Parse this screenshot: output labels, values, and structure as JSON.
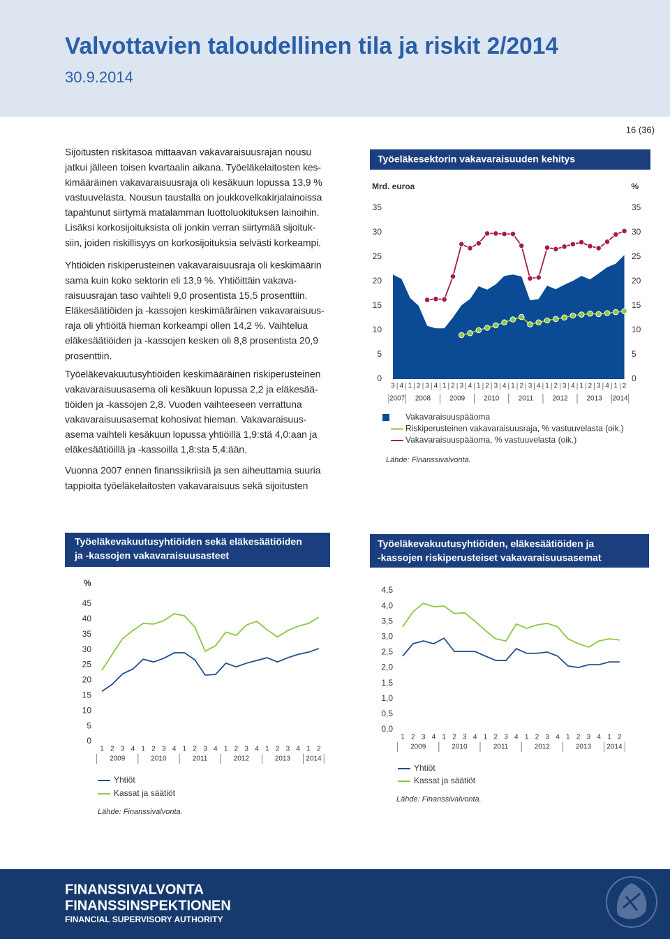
{
  "header": {
    "title": "Valvottavien taloudellinen tila ja riskit 2/2014",
    "date": "30.9.2014"
  },
  "page_number": "16 (36)",
  "paragraphs": [
    [
      "Sijoitusten riskitasoa mittaavan vakavaraisuusrajan nousu",
      "jatkui jälleen toisen kvartaalin aikana. Työeläkelaitosten kes-",
      "kimääräinen vakavaraisuusraja oli kesäkuun lopussa 13,9 %",
      "vastuuvelasta. Nousun taustalla on joukkovelkakirjalainoissa",
      "tapahtunut siirtymä matalamman luottoluokituksen lainoihin.",
      "Lisäksi korkosijoituksista oli jonkin verran siirtymää sijoituk-",
      "siin, joiden riskillisyys on korkosijoituksia selvästi korkeampi."
    ],
    [
      "Yhtiöiden riskiperusteinen vakavaraisuusraja oli keskimäärin",
      "sama kuin koko sektorin eli 13,9 %. Yhtiöittäin vakava-",
      "raisuusrajan taso vaihteli 9,0 prosentista 15,5 prosenttiin.",
      "Eläkesäätiöiden ja -kassojen keskimääräinen vakavaraisuus-",
      "raja oli yhtiöitä hieman korkeampi ollen 14,2 %. Vaihtelua",
      "eläkesäätiöiden ja -kassojen kesken oli 8,8 prosentista 20,9",
      "prosenttiin."
    ],
    [
      "Työeläkevakuutusyhtiöiden keskimääräinen riskiperusteinen",
      "vakavaraisuusasema oli kesäkuun lopussa 2,2 ja eläkesää-",
      "tiöiden ja -kassojen 2,8. Vuoden vaihteeseen verrattuna",
      "vakavaraisuusasemat kohosivat hieman. Vakavaraisuus-",
      "asema vaihteli kesäkuun lopussa yhtiöillä 1,9:stä 4,0:aan ja",
      "eläkesäätiöillä ja -kassoilla 1,8:sta 5,4:ään."
    ],
    [
      "Vuonna 2007 ennen finanssikriisiä ja sen aiheuttamia suuria",
      "tappioita työeläkelaitosten vakavaraisuus sekä sijoitusten"
    ]
  ],
  "chart_data": [
    {
      "type": "line",
      "title": [
        "Työeläkesektorin vakavaraisuuden kehitys"
      ],
      "y_label": "Mrd. euroa",
      "y2_label": "%",
      "categories": [
        "3",
        "4",
        "1",
        "2",
        "3",
        "4",
        "1",
        "2",
        "3",
        "4",
        "1",
        "2",
        "3",
        "4",
        "1",
        "2",
        "3",
        "4",
        "1",
        "2",
        "3",
        "4",
        "1",
        "2",
        "3",
        "4",
        "1",
        "2"
      ],
      "year_labels": [
        "2007",
        "2008",
        "2009",
        "2010",
        "2011",
        "2012",
        "2013",
        "2014"
      ],
      "ylim": [
        0,
        35
      ],
      "yticks": [
        0,
        5,
        10,
        15,
        20,
        25,
        30,
        35
      ],
      "y2lim": [
        0,
        35
      ],
      "y2ticks": [
        0,
        5,
        10,
        15,
        20,
        25,
        30,
        35
      ],
      "series": [
        {
          "name": "Vakavaraisuuspääoma",
          "type": "area",
          "color": "#0b4a94",
          "values": [
            21.4,
            20.5,
            16.6,
            15.0,
            10.9,
            10.4,
            10.4,
            12.6,
            15.1,
            16.4,
            19.0,
            18.3,
            19.4,
            21.1,
            21.4,
            21.0,
            16.1,
            16.4,
            19.1,
            18.4,
            19.3,
            20.1,
            21.1,
            20.4,
            21.6,
            22.9,
            23.6,
            25.4
          ]
        },
        {
          "name": "Riskiperusteinen vakavaraisuusraja, % vastuuvelasta (oik.)",
          "type": "line",
          "axis": "y2",
          "markers": true,
          "color": "#8cc63f",
          "values": [
            null,
            null,
            null,
            null,
            null,
            null,
            null,
            null,
            9.0,
            9.4,
            10.0,
            10.5,
            11.0,
            11.6,
            12.2,
            12.7,
            11.2,
            11.6,
            12.0,
            12.3,
            12.6,
            13.0,
            13.2,
            13.4,
            13.3,
            13.5,
            13.7,
            13.9
          ]
        },
        {
          "name": "Vakavaraisuuspääoma, % vastuuvelasta (oik.)",
          "type": "line",
          "axis": "y2",
          "markers": true,
          "color": "#a8194f",
          "values": [
            null,
            null,
            null,
            null,
            16.2,
            16.4,
            16.3,
            21.0,
            27.6,
            26.8,
            27.8,
            29.8,
            29.8,
            29.7,
            29.7,
            27.3,
            20.6,
            20.8,
            26.9,
            26.6,
            27.1,
            27.6,
            28.0,
            27.2,
            26.8,
            28.1,
            29.6,
            30.3
          ]
        }
      ],
      "source": "Lähde: Finanssivalvonta."
    },
    {
      "type": "line",
      "title": [
        "Työeläkevakuutusyhtiöiden sekä eläkesäätiöiden",
        "ja -kassojen vakavaraisuusasteet"
      ],
      "y_label": "%",
      "categories": [
        "1",
        "2",
        "3",
        "4",
        "1",
        "2",
        "3",
        "4",
        "1",
        "2",
        "3",
        "4",
        "1",
        "2",
        "3",
        "4",
        "1",
        "2",
        "3",
        "4",
        "1",
        "2"
      ],
      "year_labels": [
        "2009",
        "2010",
        "2011",
        "2012",
        "2013",
        "2014"
      ],
      "ylim": [
        0,
        45
      ],
      "yticks": [
        0,
        5,
        10,
        15,
        20,
        25,
        30,
        35,
        40,
        45
      ],
      "series": [
        {
          "name": "Yhtiöt",
          "color": "#1f4e8c",
          "values": [
            16.4,
            18.7,
            22.1,
            23.7,
            26.9,
            26.0,
            27.2,
            29.0,
            29.0,
            26.7,
            21.7,
            21.9,
            25.6,
            24.4,
            25.6,
            26.5,
            27.4,
            26.0,
            27.4,
            28.5,
            29.2,
            30.4
          ]
        },
        {
          "name": "Kassat ja säätiöt",
          "color": "#8cc63f",
          "values": [
            23.3,
            28.5,
            33.6,
            36.3,
            38.6,
            38.4,
            39.5,
            41.8,
            41.1,
            37.4,
            29.5,
            31.3,
            35.8,
            34.7,
            38.1,
            39.3,
            36.5,
            34.2,
            36.3,
            37.7,
            38.6,
            40.6
          ]
        }
      ],
      "source": "Lähde: Finanssivalvonta."
    },
    {
      "type": "line",
      "title": [
        "Työeläkevakuutusyhtiöiden, eläkesäätiöiden ja",
        "-kassojen riskiperusteiset vakavaraisuusasemat"
      ],
      "categories": [
        "1",
        "2",
        "3",
        "4",
        "1",
        "2",
        "3",
        "4",
        "1",
        "2",
        "3",
        "4",
        "1",
        "2",
        "3",
        "4",
        "1",
        "2",
        "3",
        "4",
        "1",
        "2"
      ],
      "year_labels": [
        "2009",
        "2010",
        "2011",
        "2012",
        "2013",
        "2014"
      ],
      "ylim": [
        0,
        4.5
      ],
      "yticks": [
        {
          "value": 0,
          "label": "0,0"
        },
        {
          "value": 0.5,
          "label": "0,5"
        },
        {
          "value": 1,
          "label": "1,0"
        },
        {
          "value": 1.5,
          "label": "1,5"
        },
        {
          "value": 2,
          "label": "2,0"
        },
        {
          "value": 2.5,
          "label": "2,5"
        },
        {
          "value": 3,
          "label": "3,0"
        },
        {
          "value": 3.5,
          "label": "3,5"
        },
        {
          "value": 4,
          "label": "4,0"
        },
        {
          "value": 4.5,
          "label": "4,5"
        }
      ],
      "series": [
        {
          "name": "Yhtiöt",
          "color": "#1f4e8c",
          "values": [
            2.38,
            2.78,
            2.87,
            2.78,
            2.96,
            2.53,
            2.53,
            2.53,
            2.38,
            2.24,
            2.24,
            2.62,
            2.47,
            2.47,
            2.51,
            2.38,
            2.06,
            2.01,
            2.1,
            2.1,
            2.19,
            2.19
          ]
        },
        {
          "name": "Kassat ja säätiöt",
          "color": "#8cc63f",
          "values": [
            3.33,
            3.82,
            4.09,
            3.98,
            4.0,
            3.76,
            3.78,
            3.51,
            3.21,
            2.94,
            2.87,
            3.42,
            3.28,
            3.39,
            3.44,
            3.33,
            2.94,
            2.78,
            2.67,
            2.87,
            2.94,
            2.9
          ]
        }
      ],
      "source": "Lähde: Finanssivalvonta."
    }
  ],
  "footer": {
    "lines": [
      "FINANSSIVALVONTA",
      "FINANSSINSPEKTIONEN",
      "FINANCIAL SUPERVISORY AUTHORITY"
    ]
  }
}
